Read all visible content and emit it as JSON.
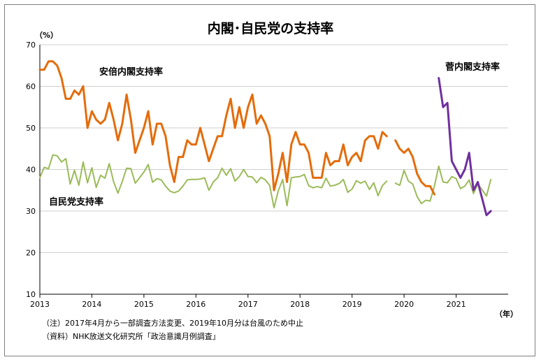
{
  "chart_data": {
    "type": "line",
    "title": "内閣･自民党の支持率",
    "y_unit": "（%）",
    "x_unit": "（年）",
    "ylim": [
      10,
      70
    ],
    "yticks": [
      10,
      20,
      30,
      40,
      50,
      60,
      70
    ],
    "xlim": [
      "2013-01",
      "2021-12"
    ],
    "x_tick_labels": [
      "2013",
      "2014",
      "2015",
      "2016",
      "2017",
      "2018",
      "2019",
      "2020",
      "2021"
    ],
    "grid": "horizontal",
    "legend": "inline labels",
    "series": [
      {
        "name": "安倍内閣支持率",
        "color": "#e46c0a",
        "points": [
          [
            "2013-01",
            64
          ],
          [
            "2013-02",
            64
          ],
          [
            "2013-03",
            66
          ],
          [
            "2013-04",
            66
          ],
          [
            "2013-05",
            65
          ],
          [
            "2013-06",
            62
          ],
          [
            "2013-07",
            57
          ],
          [
            "2013-08",
            57
          ],
          [
            "2013-09",
            59
          ],
          [
            "2013-10",
            58
          ],
          [
            "2013-11",
            60
          ],
          [
            "2013-12",
            50
          ],
          [
            "2014-01",
            54
          ],
          [
            "2014-02",
            52
          ],
          [
            "2014-03",
            51
          ],
          [
            "2014-04",
            52
          ],
          [
            "2014-05",
            56
          ],
          [
            "2014-06",
            52
          ],
          [
            "2014-07",
            47
          ],
          [
            "2014-08",
            51
          ],
          [
            "2014-09",
            58
          ],
          [
            "2014-10",
            52
          ],
          [
            "2014-11",
            44
          ],
          [
            "2014-12",
            47
          ],
          [
            "2015-01",
            50
          ],
          [
            "2015-02",
            54
          ],
          [
            "2015-03",
            46
          ],
          [
            "2015-04",
            51
          ],
          [
            "2015-05",
            51
          ],
          [
            "2015-06",
            48
          ],
          [
            "2015-07",
            41
          ],
          [
            "2015-08",
            37
          ],
          [
            "2015-09",
            43
          ],
          [
            "2015-10",
            43
          ],
          [
            "2015-11",
            47
          ],
          [
            "2015-12",
            46
          ],
          [
            "2016-01",
            46
          ],
          [
            "2016-02",
            50
          ],
          [
            "2016-03",
            46
          ],
          [
            "2016-04",
            42
          ],
          [
            "2016-05",
            45
          ],
          [
            "2016-06",
            48
          ],
          [
            "2016-07",
            48
          ],
          [
            "2016-08",
            53
          ],
          [
            "2016-09",
            57
          ],
          [
            "2016-10",
            50
          ],
          [
            "2016-11",
            55
          ],
          [
            "2016-12",
            50
          ],
          [
            "2017-01",
            55
          ],
          [
            "2017-02",
            58
          ],
          [
            "2017-03",
            51
          ],
          [
            "2017-04",
            53
          ],
          [
            "2017-05",
            51
          ],
          [
            "2017-06",
            48
          ],
          [
            "2017-07",
            35
          ],
          [
            "2017-08",
            39
          ],
          [
            "2017-09",
            44
          ],
          [
            "2017-10",
            37
          ],
          [
            "2017-11",
            46
          ],
          [
            "2017-12",
            49
          ],
          [
            "2018-01",
            46
          ],
          [
            "2018-02",
            46
          ],
          [
            "2018-03",
            44
          ],
          [
            "2018-04",
            38
          ],
          [
            "2018-05",
            38
          ],
          [
            "2018-06",
            38
          ],
          [
            "2018-07",
            44
          ],
          [
            "2018-08",
            41
          ],
          [
            "2018-09",
            42
          ],
          [
            "2018-10",
            42
          ],
          [
            "2018-11",
            46
          ],
          [
            "2018-12",
            41
          ],
          [
            "2019-01",
            43
          ],
          [
            "2019-02",
            44
          ],
          [
            "2019-03",
            42
          ],
          [
            "2019-04",
            47
          ],
          [
            "2019-05",
            48
          ],
          [
            "2019-06",
            48
          ],
          [
            "2019-07",
            45
          ],
          [
            "2019-08",
            49
          ],
          [
            "2019-09",
            48
          ],
          null,
          [
            "2019-11",
            47
          ],
          [
            "2019-12",
            45
          ],
          [
            "2020-01",
            44
          ],
          [
            "2020-02",
            45
          ],
          [
            "2020-03",
            43
          ],
          [
            "2020-04",
            39
          ],
          [
            "2020-05",
            37
          ],
          [
            "2020-06",
            36
          ],
          [
            "2020-07",
            36
          ],
          [
            "2020-08",
            34
          ]
        ]
      },
      {
        "name": "菅内閣支持率",
        "color": "#7030a0",
        "points": [
          [
            "2020-09",
            62
          ],
          [
            "2020-10",
            55
          ],
          [
            "2020-11",
            56
          ],
          [
            "2020-12",
            42
          ],
          [
            "2021-01",
            40
          ],
          [
            "2021-02",
            38
          ],
          [
            "2021-03",
            40
          ],
          [
            "2021-04",
            44
          ],
          [
            "2021-05",
            35
          ],
          [
            "2021-06",
            37
          ],
          [
            "2021-07",
            33
          ],
          [
            "2021-08",
            29
          ],
          [
            "2021-09",
            30
          ]
        ]
      },
      {
        "name": "自民党支持率",
        "color": "#9bbb59",
        "points": [
          [
            "2013-01",
            38
          ],
          [
            "2013-02",
            40.5
          ],
          [
            "2013-03",
            40.2
          ],
          [
            "2013-04",
            43.5
          ],
          [
            "2013-05",
            43.3
          ],
          [
            "2013-06",
            41.8
          ],
          [
            "2013-07",
            42.6
          ],
          [
            "2013-08",
            36.5
          ],
          [
            "2013-09",
            39.8
          ],
          [
            "2013-10",
            36.2
          ],
          [
            "2013-11",
            41.8
          ],
          [
            "2013-12",
            36.8
          ],
          [
            "2014-01",
            40.4
          ],
          [
            "2014-02",
            35.7
          ],
          [
            "2014-03",
            38.6
          ],
          [
            "2014-04",
            37.9
          ],
          [
            "2014-05",
            41.4
          ],
          [
            "2014-06",
            37.1
          ],
          [
            "2014-07",
            34.3
          ],
          [
            "2014-08",
            37.1
          ],
          [
            "2014-09",
            40.3
          ],
          [
            "2014-10",
            40.2
          ],
          [
            "2014-11",
            36.7
          ],
          [
            "2014-12",
            38
          ],
          [
            "2015-01",
            39.4
          ],
          [
            "2015-02",
            41.2
          ],
          [
            "2015-03",
            36.9
          ],
          [
            "2015-04",
            37.8
          ],
          [
            "2015-05",
            37.5
          ],
          [
            "2015-06",
            36
          ],
          [
            "2015-07",
            34.8
          ],
          [
            "2015-08",
            34.4
          ],
          [
            "2015-09",
            34.8
          ],
          [
            "2015-10",
            36
          ],
          [
            "2015-11",
            37.5
          ],
          [
            "2015-12",
            37.6
          ],
          [
            "2016-01",
            37.6
          ],
          [
            "2016-02",
            37.7
          ],
          [
            "2016-03",
            38
          ],
          [
            "2016-04",
            35
          ],
          [
            "2016-05",
            37
          ],
          [
            "2016-06",
            38
          ],
          [
            "2016-07",
            40.3
          ],
          [
            "2016-08",
            38.6
          ],
          [
            "2016-09",
            40.2
          ],
          [
            "2016-10",
            37.2
          ],
          [
            "2016-11",
            38.3
          ],
          [
            "2016-12",
            40
          ],
          [
            "2017-01",
            38.3
          ],
          [
            "2017-02",
            38.2
          ],
          [
            "2017-03",
            36.8
          ],
          [
            "2017-04",
            38.1
          ],
          [
            "2017-05",
            37.5
          ],
          [
            "2017-06",
            36.2
          ],
          [
            "2017-07",
            30.8
          ],
          [
            "2017-08",
            34.9
          ],
          [
            "2017-09",
            37.6
          ],
          [
            "2017-10",
            31.3
          ],
          [
            "2017-11",
            38
          ],
          [
            "2017-12",
            38.2
          ],
          [
            "2018-01",
            38.3
          ],
          [
            "2018-02",
            38.8
          ],
          [
            "2018-03",
            36.1
          ],
          [
            "2018-04",
            35.6
          ],
          [
            "2018-05",
            35.9
          ],
          [
            "2018-06",
            35.6
          ],
          [
            "2018-07",
            37.9
          ],
          [
            "2018-08",
            36
          ],
          [
            "2018-09",
            36.2
          ],
          [
            "2018-10",
            36.6
          ],
          [
            "2018-11",
            37.6
          ],
          [
            "2018-12",
            34.5
          ],
          [
            "2019-01",
            35.3
          ],
          [
            "2019-02",
            37.3
          ],
          [
            "2019-03",
            36.7
          ],
          [
            "2019-04",
            37.2
          ],
          [
            "2019-05",
            35.2
          ],
          [
            "2019-06",
            36.8
          ],
          [
            "2019-07",
            33.7
          ],
          [
            "2019-08",
            36.1
          ],
          [
            "2019-09",
            37.2
          ],
          null,
          [
            "2019-11",
            36.7
          ],
          [
            "2019-12",
            36.2
          ],
          [
            "2020-01",
            39.8
          ],
          [
            "2020-02",
            37.2
          ],
          [
            "2020-03",
            36.5
          ],
          [
            "2020-04",
            33.5
          ],
          [
            "2020-05",
            31.8
          ],
          [
            "2020-06",
            32.6
          ],
          [
            "2020-07",
            32.4
          ],
          [
            "2020-08",
            36
          ],
          [
            "2020-09",
            40.8
          ],
          [
            "2020-10",
            37
          ],
          [
            "2020-11",
            36.8
          ],
          [
            "2020-12",
            38.3
          ],
          [
            "2021-01",
            37.8
          ],
          [
            "2021-02",
            35.4
          ],
          [
            "2021-03",
            36
          ],
          [
            "2021-04",
            37.5
          ],
          [
            "2021-05",
            34.2
          ],
          [
            "2021-06",
            36.5
          ],
          [
            "2021-07",
            35.1
          ],
          [
            "2021-08",
            33.6
          ],
          [
            "2021-09",
            37.6
          ]
        ]
      }
    ],
    "notes": [
      "（注）2017年4月から一部調査方法変更、2019年10月分は台風のため中止",
      "（資料）NHK放送文化研究所「政治意識月例調査」"
    ]
  }
}
